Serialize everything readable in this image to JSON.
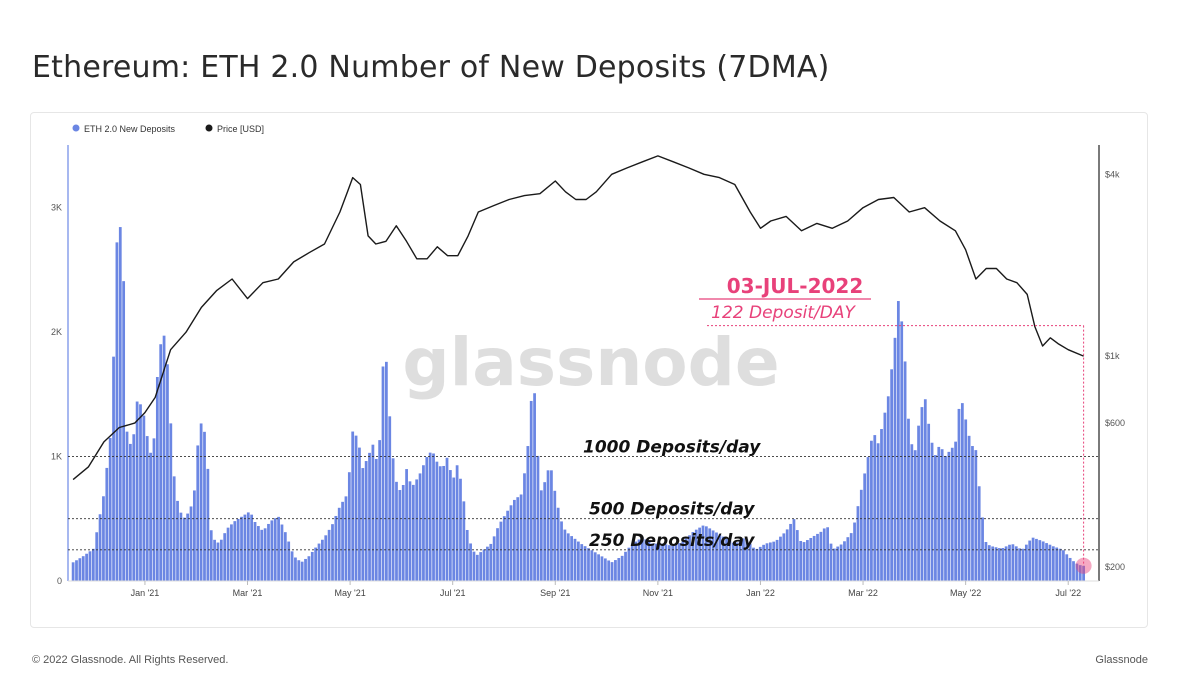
{
  "page": {
    "title": "Ethereum: ETH 2.0 Number of New Deposits (7DMA)",
    "copyright": "© 2022 Glassnode. All Rights Reserved.",
    "brand": "Glassnode",
    "watermark": "glassnode"
  },
  "chart_data": {
    "type": "bar",
    "title": "Ethereum: ETH 2.0 Number of New Deposits (7DMA)",
    "legend": {
      "placement": "top-left",
      "entries": [
        "ETH 2.0 New Deposits",
        "Price [USD]"
      ]
    },
    "x_ticks": [
      "Jan '21",
      "Mar '21",
      "May '21",
      "Jul '21",
      "Sep '21",
      "Nov '21",
      "Jan '22",
      "Mar '22",
      "May '22",
      "Jul '22"
    ],
    "x_tick_months": [
      2,
      4,
      6,
      8,
      10,
      12,
      14,
      16,
      18,
      20
    ],
    "x_range_months": [
      0.5,
      20.6
    ],
    "y_left": {
      "ticks": [
        "0",
        "1K",
        "2K",
        "3K"
      ],
      "tick_values": [
        0,
        1000,
        2000,
        3000
      ],
      "range": [
        0,
        3500
      ]
    },
    "y_right": {
      "scale": "log",
      "ticks": [
        "$200",
        "$600",
        "$1k",
        "$4k"
      ],
      "tick_values": [
        200,
        600,
        1000,
        4000
      ],
      "range": [
        180,
        5000
      ]
    },
    "grid": false,
    "series": [
      {
        "name": "ETH 2.0 New Deposits",
        "color": "#6b86e3",
        "points": [
          [
            0.6,
            150
          ],
          [
            0.8,
            200
          ],
          [
            1.0,
            260
          ],
          [
            1.2,
            700
          ],
          [
            1.35,
            1250
          ],
          [
            1.45,
            2700
          ],
          [
            1.5,
            2950
          ],
          [
            1.58,
            2500
          ],
          [
            1.65,
            1200
          ],
          [
            1.75,
            1050
          ],
          [
            1.85,
            1450
          ],
          [
            1.95,
            1400
          ],
          [
            2.05,
            1150
          ],
          [
            2.15,
            950
          ],
          [
            2.25,
            1700
          ],
          [
            2.35,
            2050
          ],
          [
            2.45,
            1700
          ],
          [
            2.55,
            900
          ],
          [
            2.65,
            600
          ],
          [
            2.75,
            500
          ],
          [
            2.85,
            550
          ],
          [
            2.95,
            650
          ],
          [
            3.05,
            1200
          ],
          [
            3.12,
            1300
          ],
          [
            3.2,
            1100
          ],
          [
            3.3,
            350
          ],
          [
            3.45,
            300
          ],
          [
            3.6,
            420
          ],
          [
            3.75,
            480
          ],
          [
            3.9,
            520
          ],
          [
            4.05,
            560
          ],
          [
            4.15,
            470
          ],
          [
            4.3,
            400
          ],
          [
            4.45,
            480
          ],
          [
            4.6,
            520
          ],
          [
            4.75,
            380
          ],
          [
            4.9,
            200
          ],
          [
            5.05,
            150
          ],
          [
            5.2,
            200
          ],
          [
            5.35,
            280
          ],
          [
            5.5,
            350
          ],
          [
            5.65,
            450
          ],
          [
            5.8,
            600
          ],
          [
            5.95,
            700
          ],
          [
            6.05,
            1200
          ],
          [
            6.15,
            1150
          ],
          [
            6.25,
            900
          ],
          [
            6.35,
            1000
          ],
          [
            6.45,
            1100
          ],
          [
            6.55,
            900
          ],
          [
            6.65,
            1800
          ],
          [
            6.72,
            1750
          ],
          [
            6.8,
            1100
          ],
          [
            6.9,
            800
          ],
          [
            7.0,
            700
          ],
          [
            7.1,
            900
          ],
          [
            7.2,
            750
          ],
          [
            7.35,
            850
          ],
          [
            7.5,
            1000
          ],
          [
            7.6,
            1050
          ],
          [
            7.7,
            950
          ],
          [
            7.8,
            900
          ],
          [
            7.9,
            1000
          ],
          [
            8.0,
            800
          ],
          [
            8.1,
            950
          ],
          [
            8.2,
            700
          ],
          [
            8.3,
            350
          ],
          [
            8.45,
            200
          ],
          [
            8.6,
            250
          ],
          [
            8.75,
            300
          ],
          [
            8.9,
            450
          ],
          [
            9.05,
            550
          ],
          [
            9.2,
            650
          ],
          [
            9.35,
            700
          ],
          [
            9.5,
            1200
          ],
          [
            9.55,
            1600
          ],
          [
            9.6,
            1500
          ],
          [
            9.7,
            700
          ],
          [
            9.8,
            800
          ],
          [
            9.9,
            950
          ],
          [
            10.0,
            700
          ],
          [
            10.1,
            500
          ],
          [
            10.2,
            400
          ],
          [
            10.35,
            350
          ],
          [
            10.5,
            300
          ],
          [
            10.7,
            250
          ],
          [
            10.9,
            200
          ],
          [
            11.1,
            150
          ],
          [
            11.3,
            200
          ],
          [
            11.5,
            300
          ],
          [
            11.7,
            350
          ],
          [
            11.9,
            300
          ],
          [
            12.1,
            300
          ],
          [
            12.3,
            280
          ],
          [
            12.5,
            320
          ],
          [
            12.7,
            400
          ],
          [
            12.9,
            450
          ],
          [
            13.1,
            400
          ],
          [
            13.3,
            350
          ],
          [
            13.5,
            300
          ],
          [
            13.7,
            350
          ],
          [
            13.9,
            250
          ],
          [
            14.1,
            300
          ],
          [
            14.3,
            320
          ],
          [
            14.5,
            400
          ],
          [
            14.65,
            500
          ],
          [
            14.8,
            300
          ],
          [
            15.0,
            350
          ],
          [
            15.2,
            400
          ],
          [
            15.3,
            450
          ],
          [
            15.4,
            250
          ],
          [
            15.6,
            300
          ],
          [
            15.8,
            400
          ],
          [
            15.9,
            600
          ],
          [
            16.0,
            800
          ],
          [
            16.1,
            1000
          ],
          [
            16.2,
            1200
          ],
          [
            16.3,
            1100
          ],
          [
            16.4,
            1300
          ],
          [
            16.5,
            1500
          ],
          [
            16.6,
            1850
          ],
          [
            16.7,
            2300
          ],
          [
            16.8,
            1900
          ],
          [
            16.9,
            1200
          ],
          [
            17.0,
            1000
          ],
          [
            17.1,
            1300
          ],
          [
            17.2,
            1500
          ],
          [
            17.3,
            1200
          ],
          [
            17.4,
            1000
          ],
          [
            17.5,
            1100
          ],
          [
            17.6,
            1000
          ],
          [
            17.7,
            1050
          ],
          [
            17.8,
            1100
          ],
          [
            17.9,
            1500
          ],
          [
            18.0,
            1300
          ],
          [
            18.1,
            1100
          ],
          [
            18.2,
            1050
          ],
          [
            18.3,
            600
          ],
          [
            18.4,
            300
          ],
          [
            18.5,
            280
          ],
          [
            18.7,
            260
          ],
          [
            18.9,
            300
          ],
          [
            19.1,
            250
          ],
          [
            19.3,
            350
          ],
          [
            19.5,
            320
          ],
          [
            19.7,
            280
          ],
          [
            19.9,
            250
          ],
          [
            20.0,
            200
          ],
          [
            20.1,
            160
          ],
          [
            20.2,
            130
          ],
          [
            20.3,
            122
          ]
        ]
      },
      {
        "name": "Price [USD]",
        "color": "#1a1a1a",
        "points": [
          [
            0.6,
            390
          ],
          [
            0.9,
            430
          ],
          [
            1.2,
            520
          ],
          [
            1.5,
            580
          ],
          [
            1.8,
            600
          ],
          [
            2.0,
            650
          ],
          [
            2.2,
            730
          ],
          [
            2.5,
            1050
          ],
          [
            2.8,
            1200
          ],
          [
            3.1,
            1450
          ],
          [
            3.4,
            1650
          ],
          [
            3.7,
            1800
          ],
          [
            4.0,
            1550
          ],
          [
            4.3,
            1750
          ],
          [
            4.6,
            1800
          ],
          [
            4.9,
            2050
          ],
          [
            5.2,
            2200
          ],
          [
            5.5,
            2350
          ],
          [
            5.8,
            3000
          ],
          [
            5.95,
            3500
          ],
          [
            6.05,
            3900
          ],
          [
            6.2,
            3700
          ],
          [
            6.35,
            2500
          ],
          [
            6.5,
            2350
          ],
          [
            6.7,
            2400
          ],
          [
            6.9,
            2700
          ],
          [
            7.1,
            2400
          ],
          [
            7.3,
            2100
          ],
          [
            7.5,
            2100
          ],
          [
            7.7,
            2300
          ],
          [
            7.9,
            2150
          ],
          [
            8.1,
            2150
          ],
          [
            8.3,
            2500
          ],
          [
            8.5,
            3000
          ],
          [
            8.8,
            3150
          ],
          [
            9.1,
            3300
          ],
          [
            9.4,
            3400
          ],
          [
            9.7,
            3450
          ],
          [
            10.0,
            3800
          ],
          [
            10.2,
            3500
          ],
          [
            10.4,
            3300
          ],
          [
            10.6,
            3300
          ],
          [
            10.8,
            3500
          ],
          [
            11.1,
            4000
          ],
          [
            11.4,
            4200
          ],
          [
            11.7,
            4400
          ],
          [
            12.0,
            4600
          ],
          [
            12.3,
            4400
          ],
          [
            12.6,
            4200
          ],
          [
            12.9,
            4000
          ],
          [
            13.2,
            3900
          ],
          [
            13.5,
            3700
          ],
          [
            13.8,
            3000
          ],
          [
            14.0,
            2650
          ],
          [
            14.2,
            2800
          ],
          [
            14.5,
            2900
          ],
          [
            14.8,
            2600
          ],
          [
            15.1,
            2750
          ],
          [
            15.4,
            2650
          ],
          [
            15.7,
            2800
          ],
          [
            16.0,
            3100
          ],
          [
            16.3,
            3300
          ],
          [
            16.6,
            3350
          ],
          [
            16.9,
            3000
          ],
          [
            17.2,
            3100
          ],
          [
            17.5,
            2800
          ],
          [
            17.8,
            2600
          ],
          [
            18.0,
            2250
          ],
          [
            18.2,
            1800
          ],
          [
            18.4,
            1950
          ],
          [
            18.6,
            1950
          ],
          [
            18.8,
            1800
          ],
          [
            19.0,
            1750
          ],
          [
            19.2,
            1600
          ],
          [
            19.35,
            1250
          ],
          [
            19.5,
            1080
          ],
          [
            19.65,
            1150
          ],
          [
            19.8,
            1100
          ],
          [
            20.0,
            1050
          ],
          [
            20.3,
            1000
          ]
        ]
      }
    ],
    "reference_lines": [
      {
        "value": 1000,
        "label": "1000 Deposits/day"
      },
      {
        "value": 500,
        "label": "500 Deposits/day"
      },
      {
        "value": 250,
        "label": "250 Deposits/day"
      }
    ],
    "annotation": {
      "date": "03-JUL-2022",
      "text": "122 Deposit/DAY",
      "x": 20.3,
      "y": 122,
      "box_top_value": 2050,
      "color": "#e8417a"
    }
  }
}
